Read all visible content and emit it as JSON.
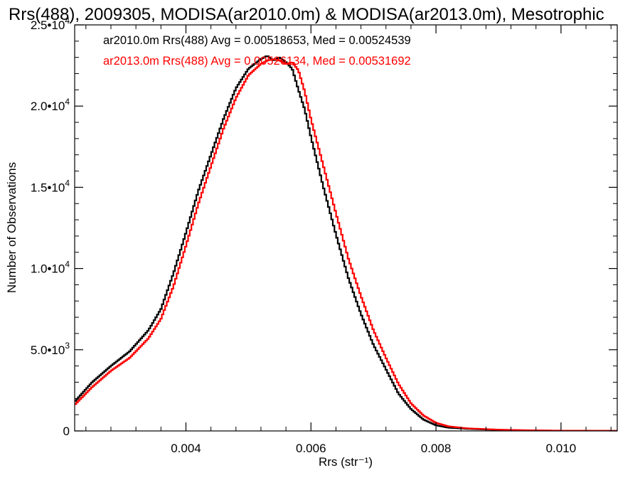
{
  "chart_data": {
    "type": "line",
    "title": "Rrs(488), 2009305, MODISA(ar2010.0m) & MODISA(ar2013.0m), Mesotrophic",
    "xlabel": "Rrs (str⁻¹)",
    "ylabel": "Number of Observations",
    "xlim": [
      0.00222,
      0.0109
    ],
    "ylim": [
      0,
      25000
    ],
    "x_ticks": [
      0.004,
      0.006,
      0.008,
      0.01
    ],
    "x_tick_labels": [
      "0.004",
      "0.006",
      "0.008",
      "0.010"
    ],
    "y_ticks": [
      0,
      5000,
      10000,
      15000,
      20000,
      25000
    ],
    "y_tick_labels": [
      {
        "mantissa": "0",
        "exp": ""
      },
      {
        "mantissa": "5.0•10",
        "exp": "3"
      },
      {
        "mantissa": "1.0•10",
        "exp": "4"
      },
      {
        "mantissa": "1.5•10",
        "exp": "4"
      },
      {
        "mantissa": "2.0•10",
        "exp": "4"
      },
      {
        "mantissa": "2.5•10",
        "exp": "4"
      }
    ],
    "grid": false,
    "legend_position": "top-left",
    "series": [
      {
        "name": "ar2010.0m",
        "color": "#000000",
        "legend_text": "ar2010.0m Rrs(488) Avg = 0.00518653, Med = 0.00524539",
        "points": [
          [
            0.00222,
            1800
          ],
          [
            0.0025,
            3000
          ],
          [
            0.0028,
            4000
          ],
          [
            0.0031,
            4900
          ],
          [
            0.0034,
            6200
          ],
          [
            0.0036,
            7500
          ],
          [
            0.0038,
            9700
          ],
          [
            0.004,
            12200
          ],
          [
            0.0042,
            14800
          ],
          [
            0.0044,
            17000
          ],
          [
            0.0046,
            19200
          ],
          [
            0.0048,
            21100
          ],
          [
            0.005,
            22300
          ],
          [
            0.0052,
            22900
          ],
          [
            0.0053,
            23100
          ],
          [
            0.0054,
            22800
          ],
          [
            0.0055,
            23000
          ],
          [
            0.0056,
            22700
          ],
          [
            0.0057,
            22300
          ],
          [
            0.0058,
            21000
          ],
          [
            0.0059,
            19800
          ],
          [
            0.006,
            18100
          ],
          [
            0.0062,
            15000
          ],
          [
            0.0064,
            12100
          ],
          [
            0.0066,
            9400
          ],
          [
            0.0068,
            7200
          ],
          [
            0.007,
            5300
          ],
          [
            0.0072,
            3800
          ],
          [
            0.0074,
            2300
          ],
          [
            0.0076,
            1350
          ],
          [
            0.0078,
            700
          ],
          [
            0.008,
            350
          ],
          [
            0.0082,
            200
          ],
          [
            0.0085,
            130
          ],
          [
            0.009,
            60
          ],
          [
            0.0095,
            30
          ],
          [
            0.01,
            15
          ],
          [
            0.0109,
            5
          ]
        ]
      },
      {
        "name": "ar2013.0m",
        "color": "#ff0000",
        "legend_text": "ar2013.0m Rrs(488) Avg = 0.00526134, Med = 0.00531692",
        "points": [
          [
            0.00222,
            1600
          ],
          [
            0.0025,
            2700
          ],
          [
            0.0028,
            3700
          ],
          [
            0.0031,
            4500
          ],
          [
            0.0034,
            5700
          ],
          [
            0.0036,
            6900
          ],
          [
            0.0038,
            8900
          ],
          [
            0.004,
            11400
          ],
          [
            0.0042,
            14000
          ],
          [
            0.0044,
            16300
          ],
          [
            0.0046,
            18600
          ],
          [
            0.0048,
            20500
          ],
          [
            0.005,
            21900
          ],
          [
            0.0052,
            22600
          ],
          [
            0.0053,
            22800
          ],
          [
            0.0054,
            22900
          ],
          [
            0.0055,
            22800
          ],
          [
            0.0056,
            22600
          ],
          [
            0.0057,
            22700
          ],
          [
            0.0058,
            22200
          ],
          [
            0.0059,
            20900
          ],
          [
            0.006,
            19200
          ],
          [
            0.0062,
            16300
          ],
          [
            0.0064,
            13400
          ],
          [
            0.0066,
            10600
          ],
          [
            0.0068,
            8300
          ],
          [
            0.007,
            6200
          ],
          [
            0.0072,
            4500
          ],
          [
            0.0074,
            2900
          ],
          [
            0.0076,
            1700
          ],
          [
            0.0078,
            950
          ],
          [
            0.008,
            500
          ],
          [
            0.0082,
            280
          ],
          [
            0.0085,
            160
          ],
          [
            0.009,
            80
          ],
          [
            0.0095,
            40
          ],
          [
            0.01,
            20
          ],
          [
            0.0109,
            8
          ]
        ]
      }
    ]
  }
}
